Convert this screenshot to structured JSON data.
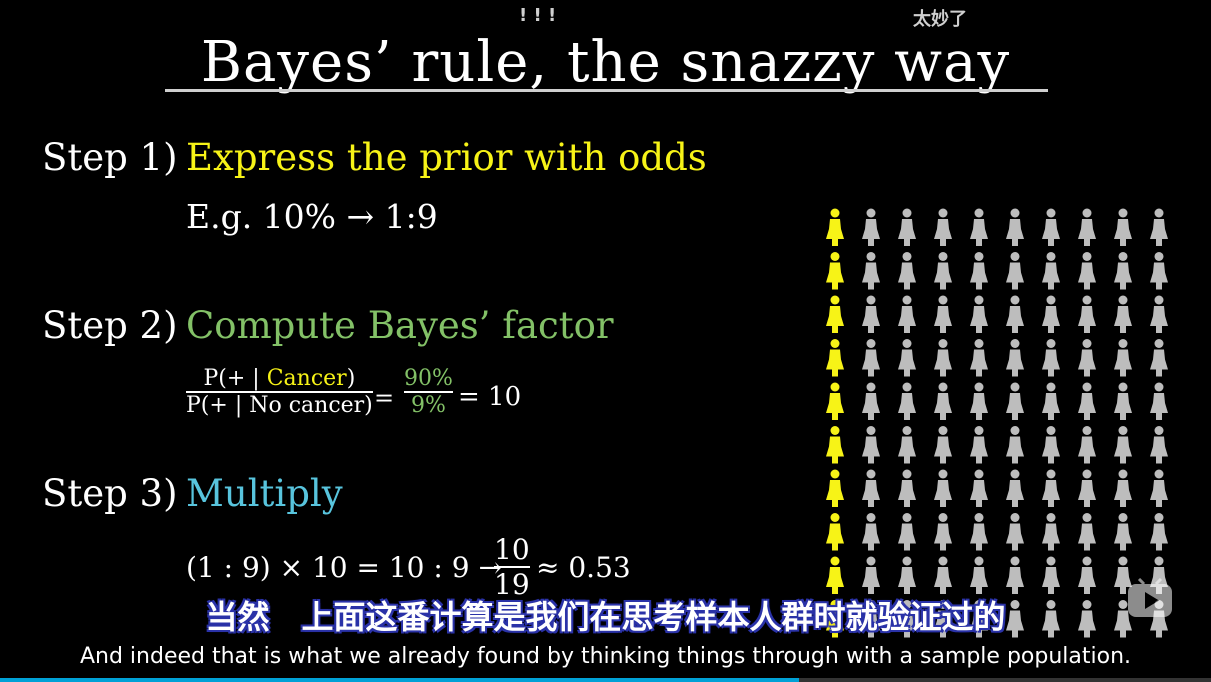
{
  "danmaku": {
    "left": "! ! !",
    "right": "太妙了"
  },
  "title": "Bayes’ rule, the snazzy way",
  "steps": [
    {
      "label": "Step 1)",
      "text": "Express the prior with odds",
      "color": "#f7f317"
    },
    {
      "label": "Step 2)",
      "text": "Compute Bayes’ factor",
      "color": "#83c167"
    },
    {
      "label": "Step 3)",
      "text": "Multiply",
      "color": "#58c4dd"
    }
  ],
  "example1": "E.g.  10% → 1:9",
  "factor": {
    "num_p": "P(+ | ",
    "num_cond": "Cancer",
    "num_close": ")",
    "den": "P(+ | No cancer)",
    "eq1": "=",
    "pct_num": "90%",
    "pct_den": "9%",
    "eq2": "= 10"
  },
  "multiply": {
    "left": "(1 : 9) × 10 = 10 : 9 →",
    "frac_num": "10",
    "frac_den": "19",
    "right": "≈ 0.53"
  },
  "population": {
    "columns": 10,
    "rows": 10,
    "highlight_column": 0,
    "highlight_color": "#f7f317",
    "base_color": "#bdbdbd"
  },
  "subtitles": {
    "cn": "当然　上面这番计算是我们在思考样本人群时就验证过的",
    "en": "And indeed that is what we already found by thinking things through with a sample population."
  },
  "progress": {
    "fraction": 0.66
  }
}
